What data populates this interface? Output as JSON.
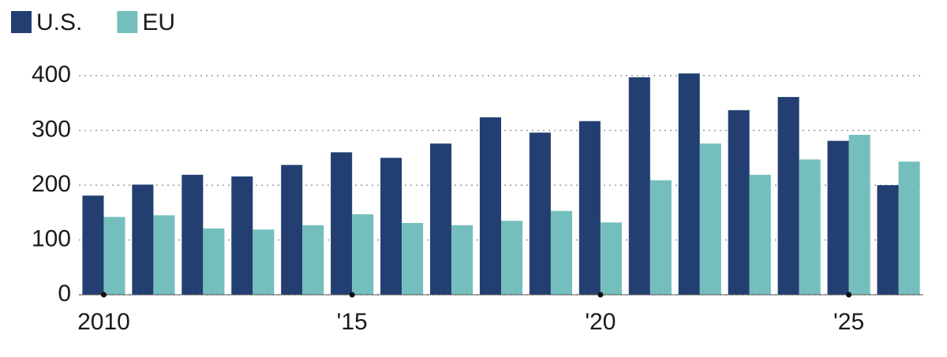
{
  "chart_data": {
    "type": "bar",
    "categories": [
      "2010",
      null,
      null,
      null,
      null,
      "'15",
      null,
      null,
      null,
      null,
      "'20",
      null,
      null,
      null,
      null,
      "'25",
      null
    ],
    "series": [
      {
        "name": "U.S.",
        "color": "#233f72",
        "values": [
          181,
          201,
          219,
          216,
          237,
          260,
          250,
          276,
          324,
          296,
          317,
          397,
          404,
          337,
          361,
          281,
          200
        ]
      },
      {
        "name": "EU",
        "color": "#74bfbd",
        "values": [
          142,
          145,
          121,
          119,
          127,
          147,
          131,
          127,
          135,
          153,
          132,
          209,
          276,
          219,
          247,
          292,
          243
        ]
      }
    ],
    "ylim": [
      0,
      400
    ],
    "yticks": [
      0,
      100,
      200,
      300,
      400
    ],
    "grid": true
  }
}
